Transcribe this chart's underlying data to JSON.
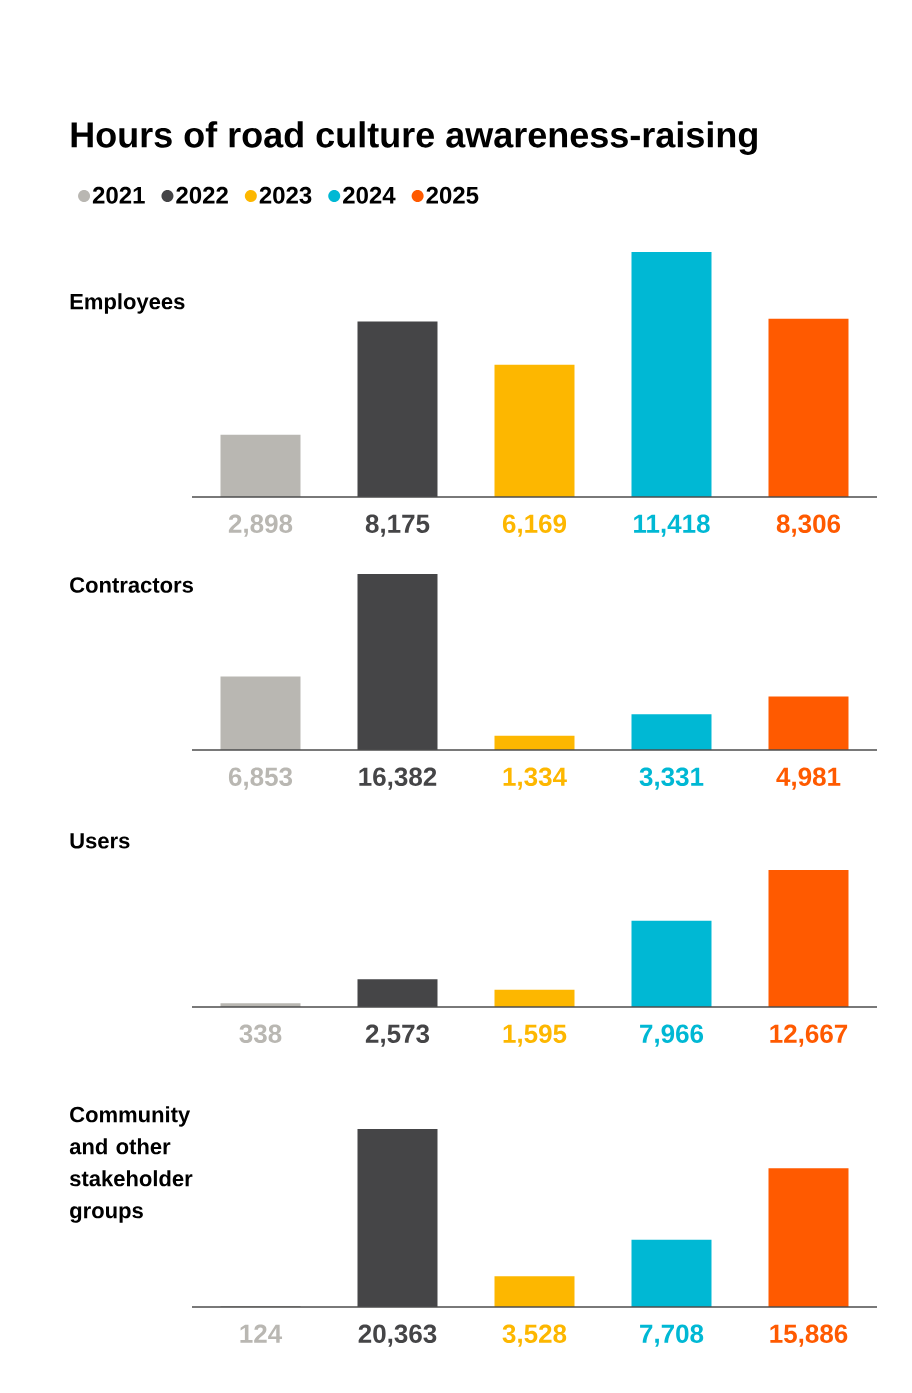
{
  "chart_data": [
    {
      "type": "bar",
      "title": "Hours of road culture awareness-raising",
      "ylabel": "Employees",
      "categories": [
        null,
        null,
        null,
        null,
        null
      ],
      "stacked": true,
      "legend": "top",
      "series": [
        {
          "name": "2021",
          "color": "#b9b7b2",
          "values": [
            2898,
            null,
            null,
            null,
            null
          ],
          "value_labels": [
            "2,898",
            null,
            null,
            null,
            null
          ]
        },
        {
          "name": "2022",
          "color": "#454547",
          "values": [
            null,
            8175,
            null,
            null,
            null
          ],
          "value_labels": [
            null,
            "8,175",
            null,
            null,
            null
          ]
        },
        {
          "name": "2023",
          "color": "#fdb700",
          "values": [
            null,
            null,
            6169,
            null,
            null
          ],
          "value_labels": [
            null,
            null,
            "6,169",
            null,
            null
          ]
        },
        {
          "name": "2024",
          "color": "#00b8d4",
          "values": [
            null,
            null,
            null,
            11418,
            null
          ],
          "value_labels": [
            null,
            null,
            null,
            "11,418",
            null
          ]
        },
        {
          "name": "2025",
          "color": "#ff5a00",
          "values": [
            null,
            null,
            null,
            null,
            8306
          ],
          "value_labels": [
            null,
            null,
            null,
            null,
            "8,306"
          ]
        }
      ]
    },
    {
      "type": "bar",
      "ylabel": "Contractors",
      "categories": [
        null,
        null,
        null,
        null,
        null
      ],
      "stacked": true,
      "series": [
        {
          "color": "#b9b7b2",
          "values": [
            6853,
            null,
            null,
            null,
            null
          ],
          "value_labels": [
            "6,853",
            null,
            null,
            null,
            null
          ]
        },
        {
          "color": "#454547",
          "values": [
            null,
            16382,
            null,
            null,
            null
          ],
          "value_labels": [
            null,
            "16,382",
            null,
            null,
            null
          ]
        },
        {
          "color": "#fdb700",
          "values": [
            null,
            null,
            1334,
            null,
            null
          ],
          "value_labels": [
            null,
            null,
            "1,334",
            null,
            null
          ]
        },
        {
          "color": "#00b8d4",
          "values": [
            null,
            null,
            null,
            3331,
            null
          ],
          "value_labels": [
            null,
            null,
            null,
            "3,331",
            null
          ]
        },
        {
          "color": "#ff5a00",
          "values": [
            null,
            null,
            null,
            null,
            4981
          ],
          "value_labels": [
            null,
            null,
            null,
            null,
            "4,981"
          ]
        }
      ]
    },
    {
      "type": "bar",
      "ylabel": "Users",
      "categories": [
        null,
        null,
        null,
        null,
        null
      ],
      "stacked": true,
      "series": [
        {
          "color": "#b9b7b2",
          "values": [
            338,
            null,
            null,
            null,
            null
          ],
          "value_labels": [
            "338",
            null,
            null,
            null,
            null
          ]
        },
        {
          "color": "#454547",
          "values": [
            null,
            2573,
            null,
            null,
            null
          ],
          "value_labels": [
            null,
            "2,573",
            null,
            null,
            null
          ]
        },
        {
          "color": "#fdb700",
          "values": [
            null,
            null,
            1595,
            null,
            null
          ],
          "value_labels": [
            null,
            null,
            "1,595",
            null,
            null
          ]
        },
        {
          "color": "#00b8d4",
          "values": [
            null,
            null,
            null,
            7966,
            null
          ],
          "value_labels": [
            null,
            null,
            null,
            "7,966",
            null
          ]
        },
        {
          "color": "#ff5a00",
          "values": [
            null,
            null,
            null,
            null,
            12667
          ],
          "value_labels": [
            null,
            null,
            null,
            null,
            "12,667"
          ]
        }
      ]
    },
    {
      "type": "bar",
      "ylabel": "Community and other stakeholder groups",
      "categories": [
        null,
        null,
        null,
        null,
        null
      ],
      "stacked": true,
      "series": [
        {
          "color": "#b9b7b2",
          "values": [
            124,
            null,
            null,
            null,
            null
          ],
          "value_labels": [
            "124",
            null,
            null,
            null,
            null
          ]
        },
        {
          "color": "#454547",
          "values": [
            null,
            20363,
            null,
            null,
            null
          ],
          "value_labels": [
            null,
            "20,363",
            null,
            null,
            null
          ]
        },
        {
          "color": "#fdb700",
          "values": [
            null,
            null,
            3528,
            null,
            null
          ],
          "value_labels": [
            null,
            null,
            "3,528",
            null,
            null
          ]
        },
        {
          "color": "#00b8d4",
          "values": [
            null,
            null,
            null,
            7708,
            null
          ],
          "value_labels": [
            null,
            null,
            null,
            "7,708",
            null
          ]
        },
        {
          "color": "#ff5a00",
          "values": [
            null,
            null,
            null,
            null,
            15886
          ],
          "value_labels": [
            null,
            null,
            null,
            null,
            "15,886"
          ]
        }
      ]
    }
  ]
}
